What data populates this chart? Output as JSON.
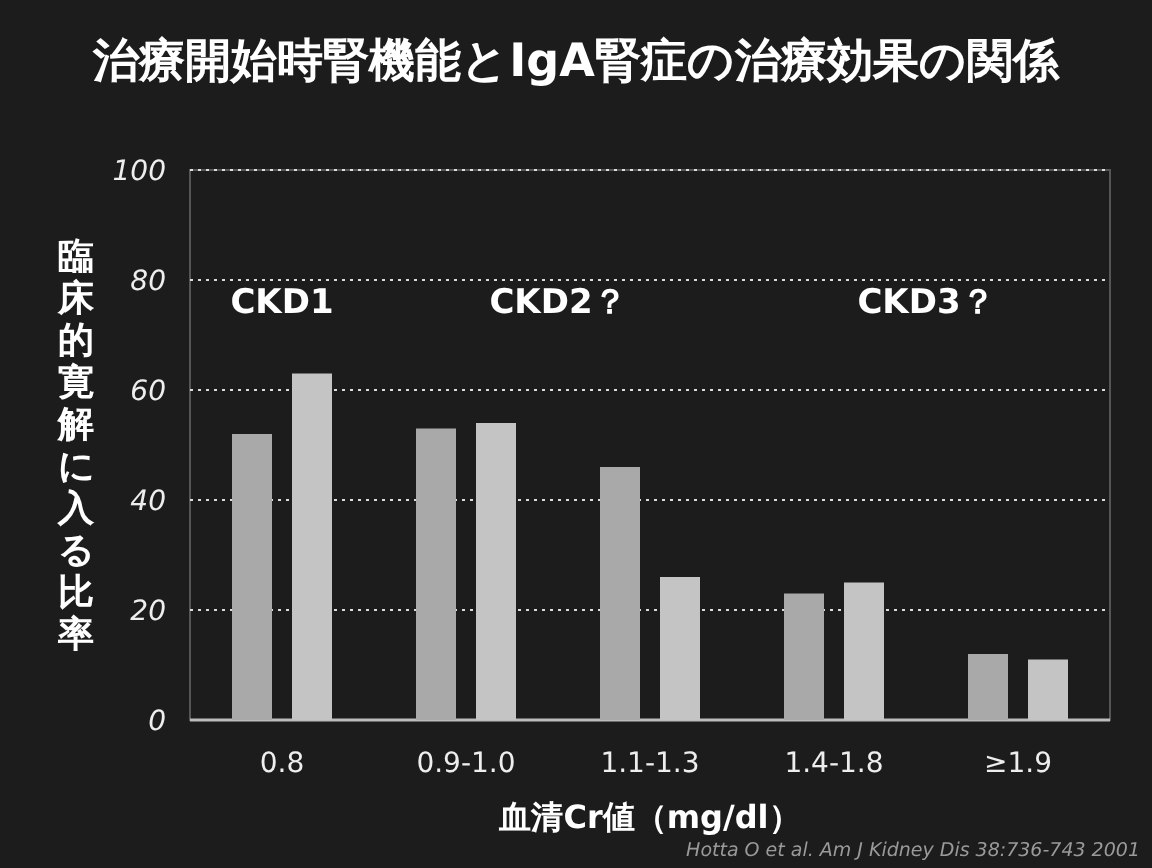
{
  "chart_data": {
    "type": "bar",
    "title": "治療開始時腎機能とIgA腎症の治療効果の関係",
    "xlabel": "血清Cr値（mg/dl）",
    "ylabel": "臨床的寛解に入る比率",
    "categories": [
      "0.8",
      "0.9-1.0",
      "1.1-1.3",
      "1.4-1.8",
      "≥1.9"
    ],
    "series": [
      {
        "color": "#a9a9a9",
        "values": [
          52,
          53,
          46,
          23,
          12
        ]
      },
      {
        "color": "#c4c4c4",
        "values": [
          63,
          54,
          26,
          25,
          11
        ]
      }
    ],
    "ylim": [
      0,
      100
    ],
    "yticks": [
      0,
      20,
      40,
      60,
      80,
      100
    ],
    "grid": "y",
    "annotations": [
      "CKD1",
      "CKD2？",
      "CKD3？",
      "Hotta O et al. Am J Kidney Dis 38:736-743 2001"
    ]
  }
}
